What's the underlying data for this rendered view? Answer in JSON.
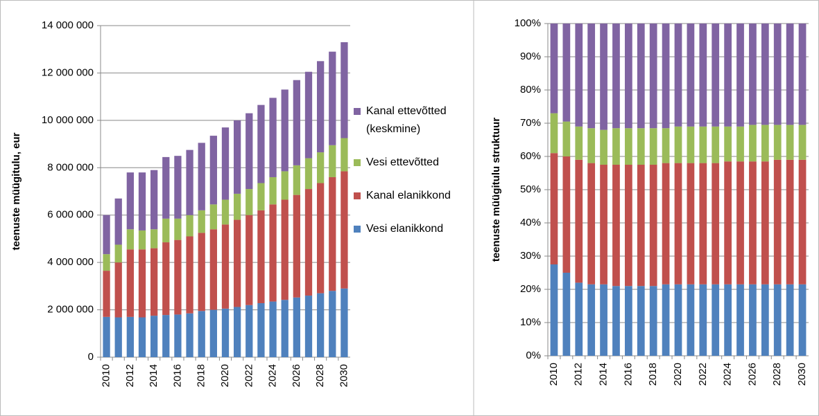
{
  "chart_data": [
    {
      "type": "stacked_bar",
      "y_label": "teenuste müügitulu, eur",
      "categories": [
        "2010",
        null,
        "2012",
        null,
        "2014",
        null,
        "2016",
        null,
        "2018",
        null,
        "2020",
        null,
        "2022",
        null,
        "2024",
        null,
        "2026",
        null,
        "2028",
        null,
        "2030"
      ],
      "ylim": [
        0,
        14000000
      ],
      "yticks": [
        {
          "value": 0,
          "label": "0"
        },
        {
          "value": 2000000,
          "label": "2 000 000"
        },
        {
          "value": 4000000,
          "label": "4 000 000"
        },
        {
          "value": 6000000,
          "label": "6 000 000"
        },
        {
          "value": 8000000,
          "label": "8 000 000"
        },
        {
          "value": 10000000,
          "label": "10 000 000"
        },
        {
          "value": 12000000,
          "label": "12 000 000"
        },
        {
          "value": 14000000,
          "label": "14 000 000"
        }
      ],
      "grid": true,
      "legend": "right",
      "series": [
        {
          "name": "Vesi elanikkond",
          "color": "#4f81bd",
          "values": [
            1700000,
            1680000,
            1700000,
            1680000,
            1750000,
            1780000,
            1800000,
            1850000,
            1950000,
            2000000,
            2050000,
            2120000,
            2200000,
            2280000,
            2350000,
            2420000,
            2520000,
            2600000,
            2700000,
            2800000,
            2900000
          ]
        },
        {
          "name": "Kanal elanikkond",
          "color": "#c0504d",
          "values": [
            1950000,
            2320000,
            2850000,
            2870000,
            2850000,
            3070000,
            3150000,
            3250000,
            3300000,
            3400000,
            3550000,
            3680000,
            3800000,
            3920000,
            4100000,
            4230000,
            4330000,
            4500000,
            4650000,
            4800000,
            4950000
          ]
        },
        {
          "name": "Vesi ettevõtted",
          "color": "#9bbb59",
          "values": [
            700000,
            750000,
            850000,
            800000,
            800000,
            1000000,
            900000,
            900000,
            950000,
            1050000,
            1050000,
            1100000,
            1100000,
            1150000,
            1150000,
            1200000,
            1250000,
            1300000,
            1300000,
            1350000,
            1400000
          ]
        },
        {
          "name": "Kanal ettevõtted (keskmine)",
          "color": "#8064a2",
          "values": [
            1650000,
            1950000,
            2400000,
            2450000,
            2500000,
            2600000,
            2650000,
            2750000,
            2850000,
            2900000,
            3050000,
            3100000,
            3200000,
            3300000,
            3350000,
            3450000,
            3600000,
            3650000,
            3850000,
            3950000,
            4050000
          ]
        }
      ]
    },
    {
      "type": "stacked_bar",
      "y_label": "teenuste müügitulu struktuur",
      "categories": [
        "2010",
        null,
        "2012",
        null,
        "2014",
        null,
        "2016",
        null,
        "2018",
        null,
        "2020",
        null,
        "2022",
        null,
        "2024",
        null,
        "2026",
        null,
        "2028",
        null,
        "2030"
      ],
      "ylim": [
        0,
        100
      ],
      "yticks": [
        {
          "value": 0,
          "label": "0%"
        },
        {
          "value": 10,
          "label": "10%"
        },
        {
          "value": 20,
          "label": "20%"
        },
        {
          "value": 30,
          "label": "30%"
        },
        {
          "value": 40,
          "label": "40%"
        },
        {
          "value": 50,
          "label": "50%"
        },
        {
          "value": 60,
          "label": "60%"
        },
        {
          "value": 70,
          "label": "70%"
        },
        {
          "value": 80,
          "label": "80%"
        },
        {
          "value": 90,
          "label": "90%"
        },
        {
          "value": 100,
          "label": "100%"
        }
      ],
      "grid": true,
      "series": [
        {
          "color": "#4f81bd",
          "values": [
            27.5,
            25,
            22,
            21.5,
            21.5,
            21,
            21,
            21,
            21,
            21.5,
            21.5,
            21.5,
            21.5,
            21.5,
            21.5,
            21.5,
            21.5,
            21.5,
            21.5,
            21.5,
            21.5
          ]
        },
        {
          "color": "#c0504d",
          "values": [
            33.5,
            35,
            37,
            36.5,
            36,
            36.5,
            36.5,
            36.5,
            36.5,
            36.5,
            36.5,
            36.5,
            36.5,
            36.5,
            37,
            37,
            37,
            37,
            37.5,
            37.5,
            37.5
          ]
        },
        {
          "color": "#9bbb59",
          "values": [
            12,
            10.5,
            10,
            10.5,
            10.5,
            11,
            11,
            11,
            11,
            10.5,
            11,
            11,
            11,
            11,
            10.5,
            10.5,
            11,
            11,
            10.5,
            10.5,
            10.5
          ]
        },
        {
          "color": "#8064a2",
          "values": [
            27,
            29.5,
            31,
            31.5,
            32,
            31.5,
            31.5,
            31.5,
            31.5,
            31.5,
            31,
            31,
            31,
            31,
            31,
            31,
            30.5,
            30.5,
            30.5,
            30.5,
            30.5
          ]
        }
      ]
    }
  ]
}
